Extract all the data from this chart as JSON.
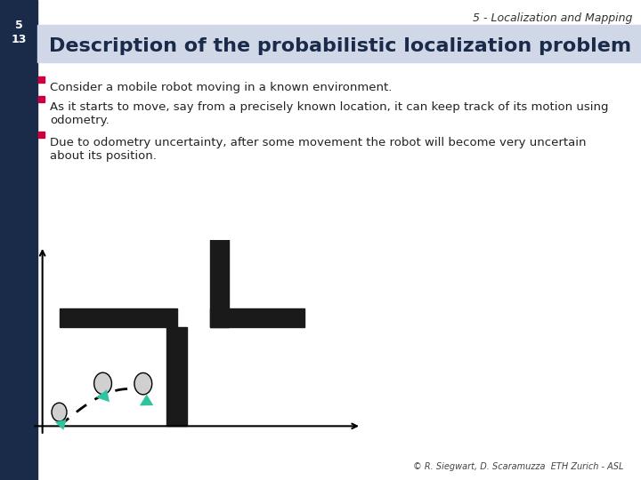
{
  "title_top": "5 - Localization and Mapping",
  "slide_num": "5\n13",
  "slide_title": "Description of the probabilistic localization problem",
  "bullet1": "Consider a mobile robot moving in a known environment.",
  "bullet2": "As it starts to move, say from a precisely known location, it can keep track of its motion using\nodometry.",
  "bullet3": "Due to odometry uncertainty, after some movement the robot will become very uncertain\nabout its position.",
  "copyright": "© R. Siegwart, D. Scaramuzza  ETH Zurich - ASL",
  "bg_color": "#f0f0f0",
  "header_dark_color": "#1a2b4a",
  "header_light_color": "#d0d8e8",
  "bullet_color": "#cc003d",
  "title_color": "#1a2b4a",
  "robot_color": "#2ec4a0",
  "wall_color": "#1a1a1a"
}
